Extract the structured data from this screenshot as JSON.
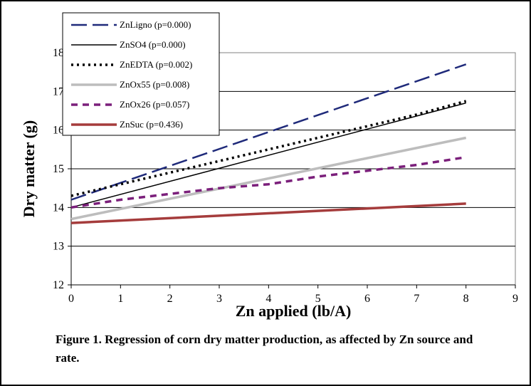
{
  "chart_data": {
    "type": "line",
    "xlabel": "Zn applied (lb/A)",
    "ylabel": "Dry matter (g)",
    "xlim": [
      0,
      9
    ],
    "ylim": [
      12,
      18
    ],
    "xticks": [
      0,
      1,
      2,
      3,
      4,
      5,
      6,
      7,
      8,
      9
    ],
    "yticks": [
      12,
      13,
      14,
      15,
      16,
      17,
      18
    ],
    "grid": "horizontal",
    "legend_position": "top-left",
    "series": [
      {
        "name": "ZnLigno (p=0.000)",
        "color": "#1f2a7a",
        "style": "long-dash",
        "x": [
          0,
          8
        ],
        "y": [
          14.2,
          17.7
        ]
      },
      {
        "name": "ZnSO4 (p=0.000)",
        "color": "#000000",
        "style": "solid-thin",
        "x": [
          0,
          8
        ],
        "y": [
          14.0,
          16.7
        ]
      },
      {
        "name": "ZnEDTA (p=0.002)",
        "color": "#000000",
        "style": "dotted",
        "x": [
          0,
          1,
          2,
          3,
          4,
          5,
          6,
          7,
          8
        ],
        "y": [
          14.3,
          14.6,
          14.9,
          15.2,
          15.5,
          15.8,
          16.1,
          16.4,
          16.75
        ]
      },
      {
        "name": "ZnOx55 (p=0.008)",
        "color": "#bdbdbd",
        "style": "solid-thick",
        "x": [
          0,
          8
        ],
        "y": [
          13.7,
          15.8
        ]
      },
      {
        "name": "ZnOx26 (p=0.057)",
        "color": "#7b1f7b",
        "style": "dash",
        "x": [
          0,
          1,
          2,
          3,
          4,
          5,
          6,
          7,
          8
        ],
        "y": [
          14.0,
          14.2,
          14.35,
          14.5,
          14.6,
          14.8,
          14.95,
          15.1,
          15.3
        ]
      },
      {
        "name": "ZnSuc (p=0.436)",
        "color": "#a53c3c",
        "style": "solid-thick",
        "x": [
          0,
          8
        ],
        "y": [
          13.6,
          14.1
        ]
      }
    ]
  },
  "caption": "Figure 1.  Regression of corn dry matter production, as affected by Zn source and rate."
}
